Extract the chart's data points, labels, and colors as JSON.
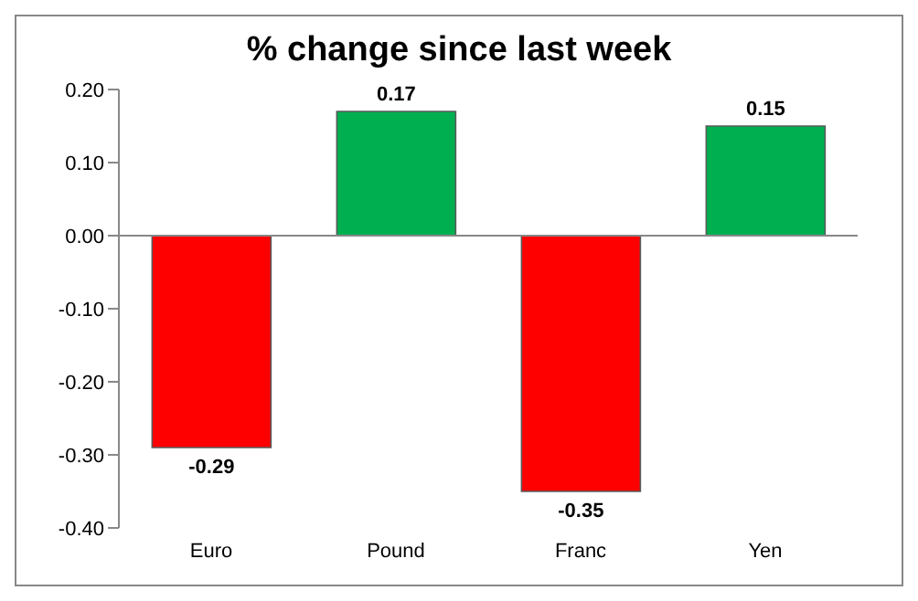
{
  "chart_data": {
    "type": "bar",
    "title": "% change since last week",
    "categories": [
      "Euro",
      "Pound",
      "Franc",
      "Yen"
    ],
    "values": [
      -0.29,
      0.17,
      -0.35,
      0.15
    ],
    "colors": [
      "#ff0000",
      "#00b050",
      "#ff0000",
      "#00b050"
    ],
    "ylim": [
      -0.4,
      0.2
    ],
    "yticks": [
      {
        "value": 0.2,
        "label": "0.20"
      },
      {
        "value": 0.1,
        "label": "0.10"
      },
      {
        "value": 0,
        "label": "0.00"
      },
      {
        "value": -0.1,
        "label": "-0.10"
      },
      {
        "value": -0.2,
        "label": "-0.20"
      },
      {
        "value": -0.3,
        "label": "-0.30"
      },
      {
        "value": -0.4,
        "label": "-0.40"
      }
    ],
    "ref_lines": [
      {
        "axis": "y",
        "value": 0,
        "color": "#888888"
      }
    ],
    "data_labels": true
  }
}
